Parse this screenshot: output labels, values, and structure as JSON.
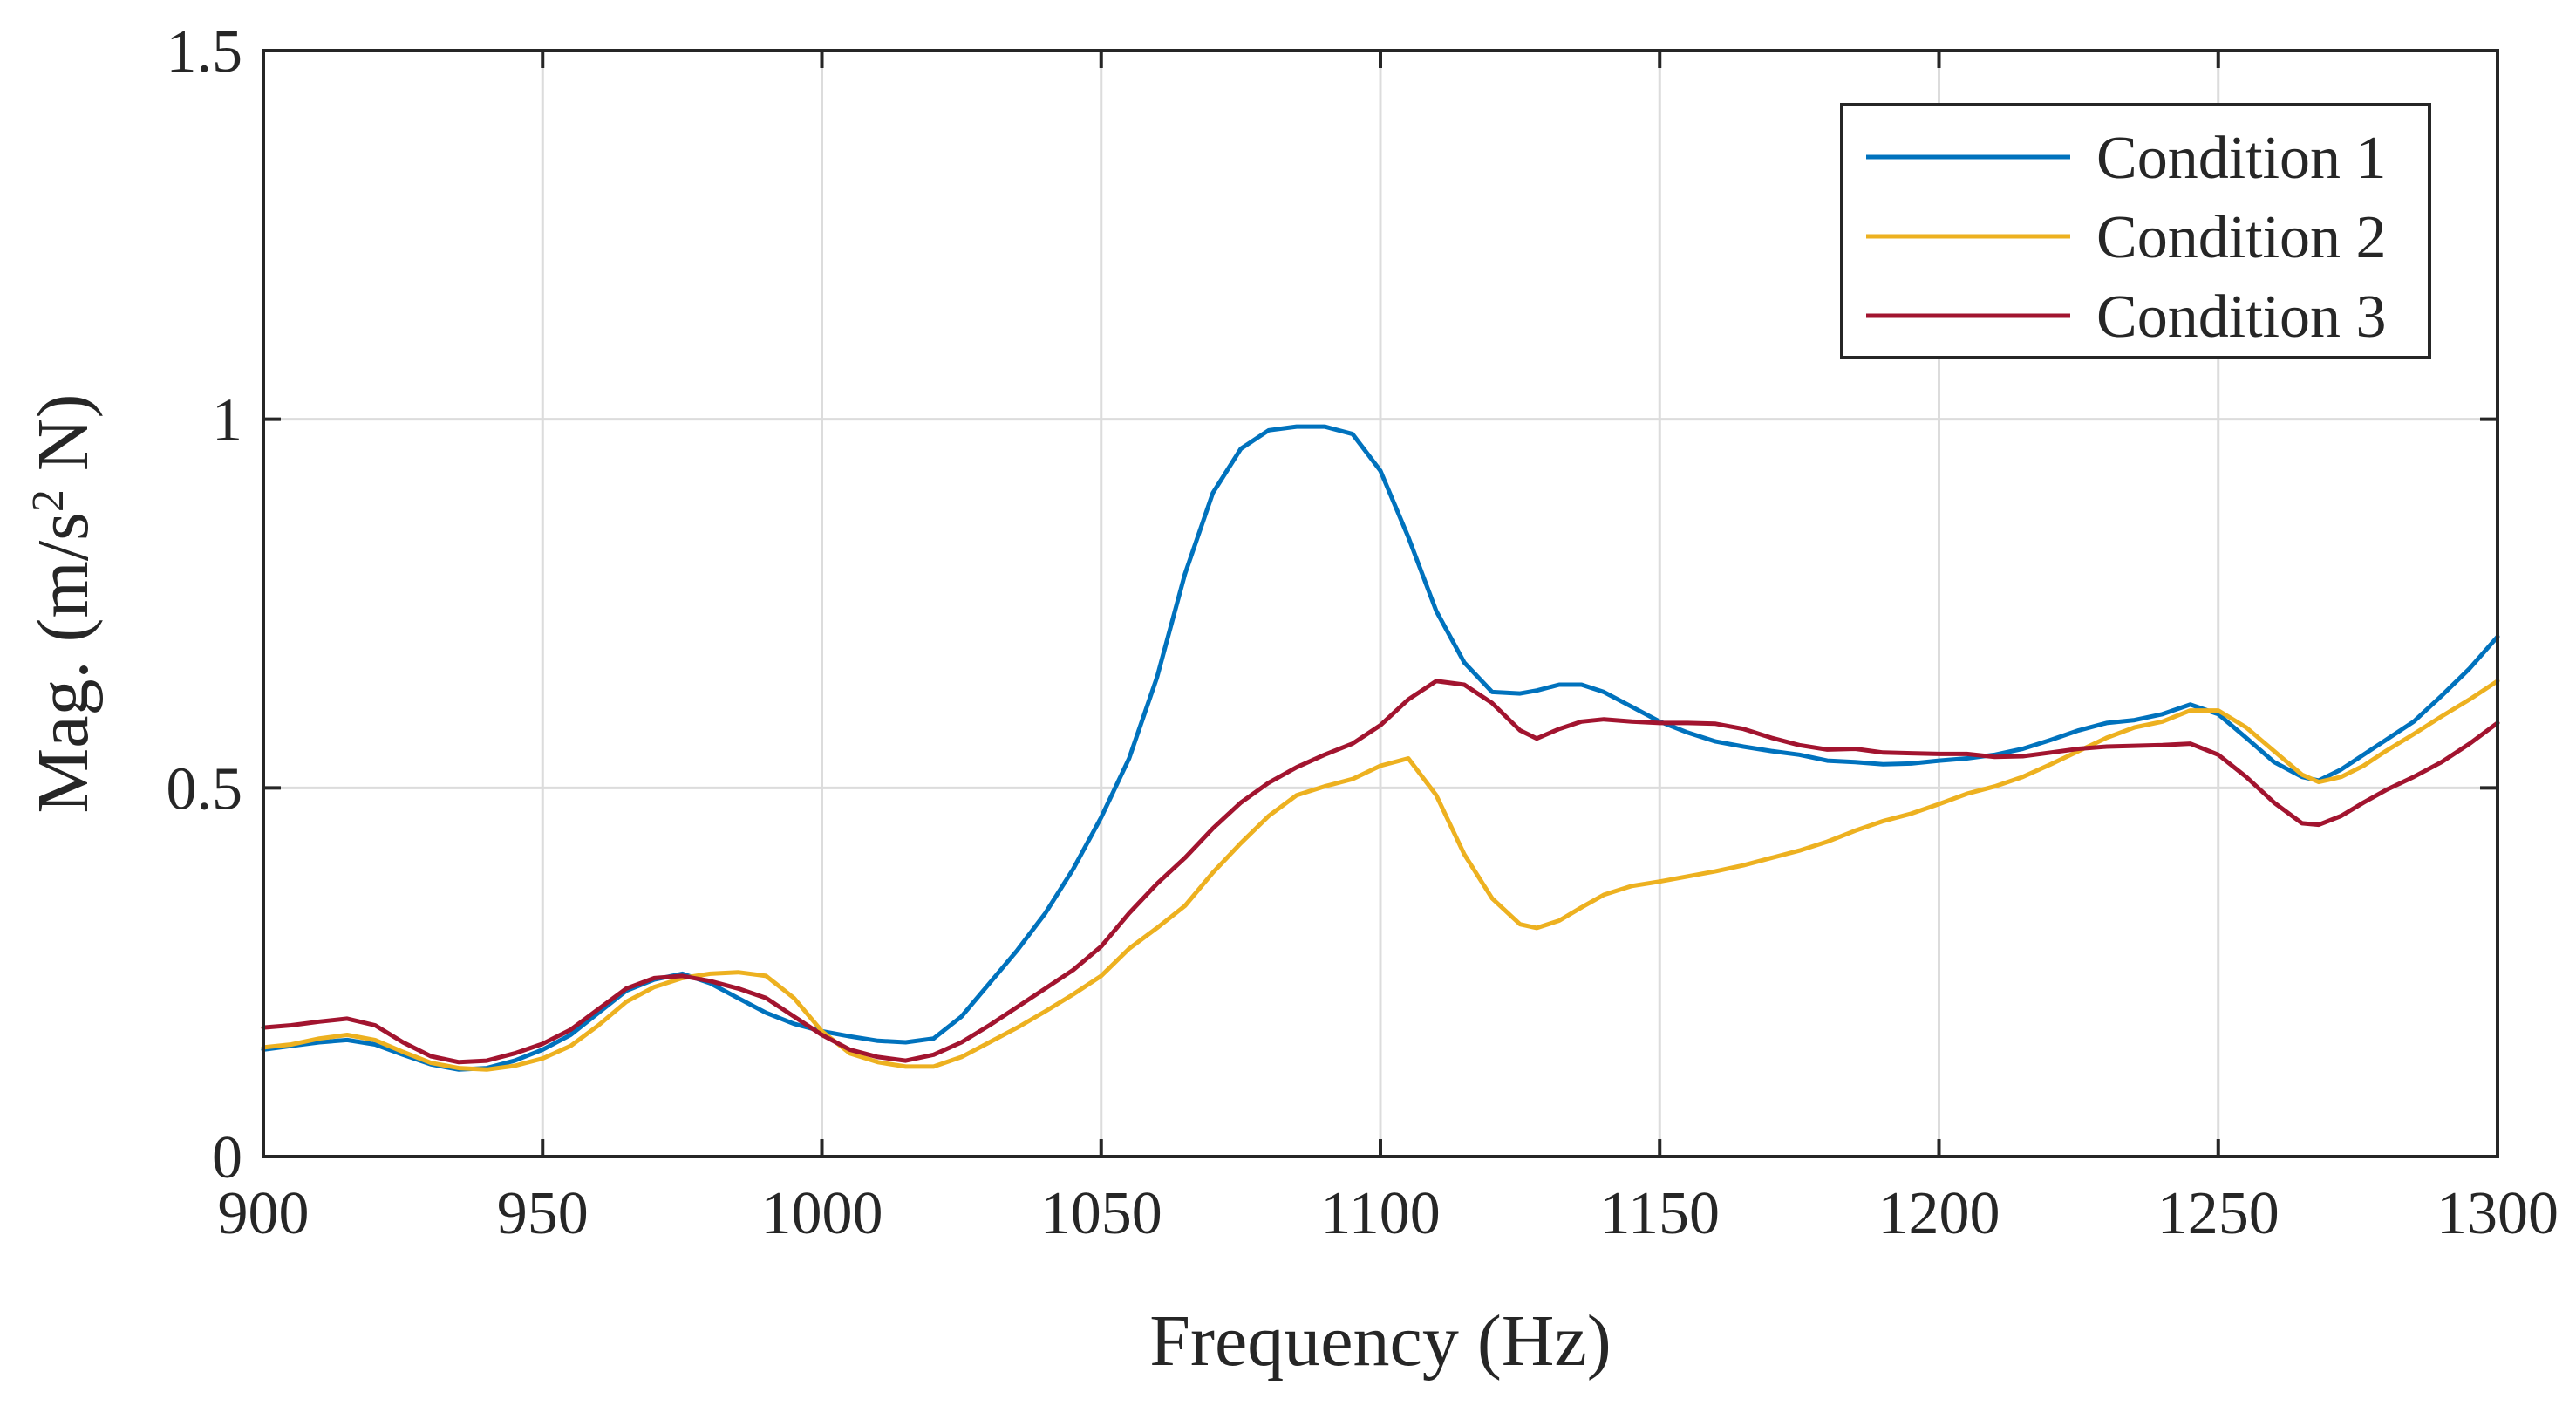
{
  "chart_data": {
    "type": "line",
    "title": "",
    "xlabel": "Frequency (Hz)",
    "ylabel_main": "Mag. (m/s",
    "ylabel_sup": "2",
    "ylabel_tail": " N)",
    "xlim": [
      900,
      1300
    ],
    "ylim": [
      0,
      1.5
    ],
    "grid": true,
    "legend_position": "top-right",
    "xticks": [
      900,
      950,
      1000,
      1050,
      1100,
      1150,
      1200,
      1250,
      1300
    ],
    "xtick_labels": [
      "900",
      "950",
      "1000",
      "1050",
      "1100",
      "1150",
      "1200",
      "1250",
      "1300"
    ],
    "yticks": [
      0,
      0.5,
      1,
      1.5
    ],
    "ytick_labels": [
      "0",
      "0.5",
      "1",
      "1.5"
    ],
    "series": [
      {
        "name": "Condition 1",
        "color": "#0072BD",
        "x": [
          900,
          905,
          910,
          915,
          920,
          925,
          930,
          935,
          940,
          945,
          950,
          955,
          960,
          965,
          970,
          975,
          980,
          985,
          990,
          995,
          1000,
          1005,
          1010,
          1015,
          1020,
          1025,
          1030,
          1035,
          1040,
          1045,
          1050,
          1055,
          1060,
          1065,
          1070,
          1075,
          1080,
          1085,
          1090,
          1095,
          1100,
          1105,
          1110,
          1115,
          1120,
          1125,
          1128,
          1132,
          1136,
          1140,
          1145,
          1150,
          1155,
          1160,
          1165,
          1170,
          1175,
          1180,
          1185,
          1190,
          1195,
          1200,
          1205,
          1210,
          1215,
          1220,
          1225,
          1230,
          1235,
          1240,
          1245,
          1250,
          1255,
          1260,
          1265,
          1268,
          1272,
          1276,
          1280,
          1285,
          1290,
          1295,
          1300
        ],
        "values": [
          0.145,
          0.15,
          0.155,
          0.158,
          0.152,
          0.138,
          0.125,
          0.118,
          0.12,
          0.13,
          0.145,
          0.165,
          0.195,
          0.225,
          0.24,
          0.248,
          0.235,
          0.215,
          0.195,
          0.18,
          0.17,
          0.163,
          0.157,
          0.155,
          0.16,
          0.19,
          0.235,
          0.28,
          0.33,
          0.39,
          0.46,
          0.54,
          0.65,
          0.79,
          0.9,
          0.96,
          0.985,
          0.99,
          0.99,
          0.98,
          0.93,
          0.84,
          0.74,
          0.67,
          0.63,
          0.628,
          0.632,
          0.64,
          0.64,
          0.63,
          0.61,
          0.59,
          0.575,
          0.563,
          0.556,
          0.55,
          0.545,
          0.537,
          0.535,
          0.532,
          0.533,
          0.537,
          0.54,
          0.545,
          0.553,
          0.565,
          0.578,
          0.588,
          0.592,
          0.6,
          0.613,
          0.6,
          0.568,
          0.535,
          0.515,
          0.51,
          0.525,
          0.545,
          0.565,
          0.59,
          0.625,
          0.662,
          0.705
        ]
      },
      {
        "name": "Condition 2",
        "color": "#EDB120",
        "x": [
          900,
          905,
          910,
          915,
          920,
          925,
          930,
          935,
          940,
          945,
          950,
          955,
          960,
          965,
          970,
          975,
          980,
          985,
          990,
          995,
          1000,
          1005,
          1010,
          1015,
          1020,
          1025,
          1030,
          1035,
          1040,
          1045,
          1050,
          1055,
          1060,
          1065,
          1070,
          1075,
          1080,
          1085,
          1090,
          1095,
          1100,
          1105,
          1110,
          1115,
          1120,
          1125,
          1128,
          1132,
          1136,
          1140,
          1145,
          1150,
          1155,
          1160,
          1165,
          1170,
          1175,
          1180,
          1185,
          1190,
          1195,
          1200,
          1205,
          1210,
          1215,
          1220,
          1225,
          1230,
          1235,
          1240,
          1245,
          1250,
          1255,
          1260,
          1265,
          1268,
          1272,
          1276,
          1280,
          1285,
          1290,
          1295,
          1300
        ],
        "values": [
          0.148,
          0.152,
          0.16,
          0.165,
          0.158,
          0.142,
          0.127,
          0.12,
          0.118,
          0.123,
          0.133,
          0.15,
          0.178,
          0.21,
          0.23,
          0.242,
          0.248,
          0.25,
          0.245,
          0.215,
          0.17,
          0.14,
          0.128,
          0.122,
          0.122,
          0.135,
          0.155,
          0.175,
          0.197,
          0.22,
          0.245,
          0.282,
          0.31,
          0.34,
          0.385,
          0.425,
          0.462,
          0.49,
          0.502,
          0.512,
          0.53,
          0.54,
          0.49,
          0.41,
          0.35,
          0.315,
          0.31,
          0.32,
          0.338,
          0.355,
          0.367,
          0.373,
          0.38,
          0.387,
          0.395,
          0.405,
          0.415,
          0.427,
          0.442,
          0.455,
          0.465,
          0.478,
          0.492,
          0.502,
          0.515,
          0.532,
          0.55,
          0.568,
          0.582,
          0.59,
          0.605,
          0.605,
          0.582,
          0.55,
          0.518,
          0.508,
          0.515,
          0.53,
          0.55,
          0.573,
          0.597,
          0.62,
          0.645
        ]
      },
      {
        "name": "Condition 3",
        "color": "#A2142F",
        "x": [
          900,
          905,
          910,
          915,
          920,
          925,
          930,
          935,
          940,
          945,
          950,
          955,
          960,
          965,
          970,
          975,
          980,
          985,
          990,
          995,
          1000,
          1005,
          1010,
          1015,
          1020,
          1025,
          1030,
          1035,
          1040,
          1045,
          1050,
          1055,
          1060,
          1065,
          1070,
          1075,
          1080,
          1085,
          1090,
          1095,
          1100,
          1105,
          1110,
          1115,
          1120,
          1125,
          1128,
          1132,
          1136,
          1140,
          1145,
          1150,
          1155,
          1160,
          1165,
          1170,
          1175,
          1180,
          1185,
          1190,
          1195,
          1200,
          1205,
          1210,
          1215,
          1220,
          1225,
          1230,
          1235,
          1240,
          1245,
          1250,
          1255,
          1260,
          1265,
          1268,
          1272,
          1276,
          1280,
          1285,
          1290,
          1295,
          1300
        ],
        "values": [
          0.175,
          0.178,
          0.183,
          0.187,
          0.178,
          0.155,
          0.136,
          0.128,
          0.13,
          0.14,
          0.153,
          0.172,
          0.2,
          0.228,
          0.242,
          0.245,
          0.238,
          0.228,
          0.215,
          0.19,
          0.165,
          0.145,
          0.135,
          0.13,
          0.138,
          0.155,
          0.178,
          0.203,
          0.228,
          0.253,
          0.285,
          0.33,
          0.37,
          0.405,
          0.445,
          0.48,
          0.507,
          0.528,
          0.545,
          0.56,
          0.585,
          0.62,
          0.645,
          0.64,
          0.615,
          0.578,
          0.567,
          0.58,
          0.59,
          0.593,
          0.59,
          0.588,
          0.588,
          0.587,
          0.58,
          0.568,
          0.558,
          0.552,
          0.553,
          0.548,
          0.547,
          0.546,
          0.546,
          0.542,
          0.543,
          0.548,
          0.553,
          0.556,
          0.557,
          0.558,
          0.56,
          0.545,
          0.515,
          0.48,
          0.452,
          0.45,
          0.462,
          0.48,
          0.497,
          0.515,
          0.535,
          0.56,
          0.588
        ]
      }
    ]
  }
}
